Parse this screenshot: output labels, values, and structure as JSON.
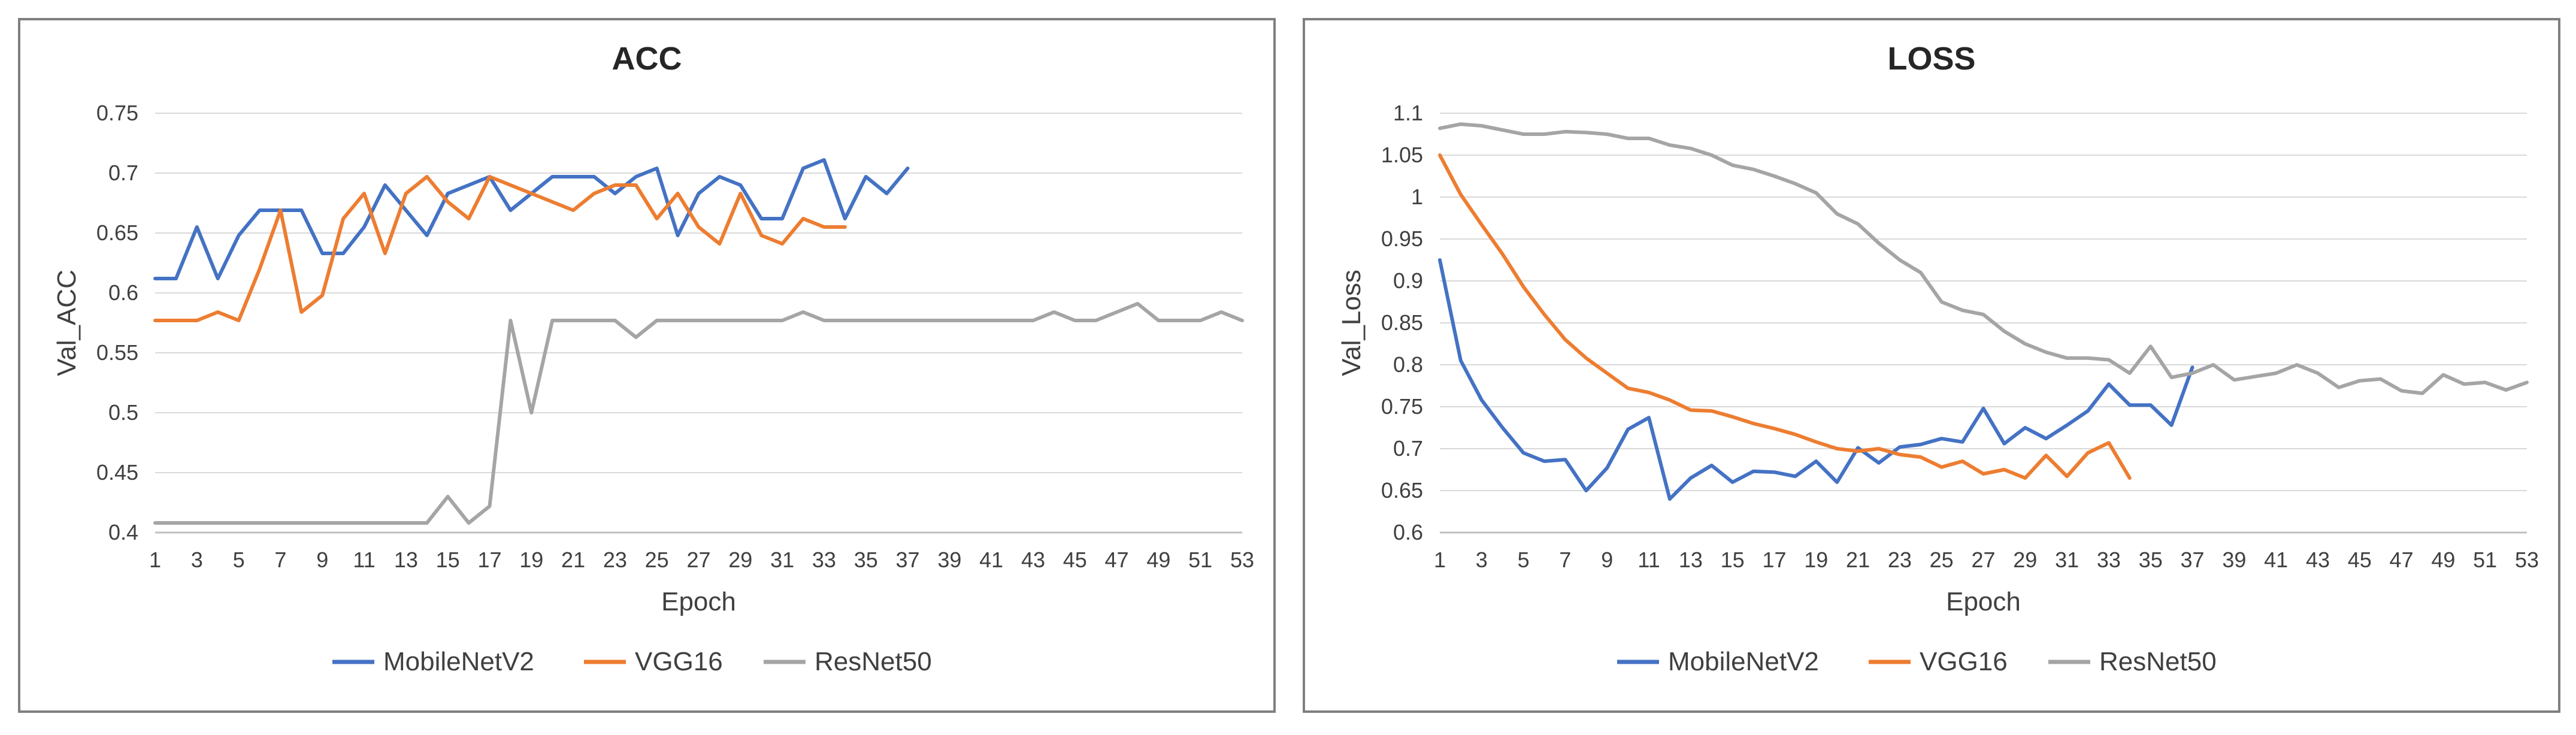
{
  "chart_data": [
    {
      "type": "line",
      "title": "ACC",
      "xlabel": "Epoch",
      "ylabel": "Val_ACC",
      "ylim": [
        0.4,
        0.75
      ],
      "yticks": [
        "0.4",
        "0.45",
        "0.5",
        "0.55",
        "0.6",
        "0.65",
        "0.7",
        "0.75"
      ],
      "xlim": [
        1,
        53
      ],
      "xtick_labels": [
        "1",
        "3",
        "5",
        "7",
        "9",
        "11",
        "13",
        "15",
        "17",
        "19",
        "21",
        "23",
        "25",
        "27",
        "29",
        "31",
        "33",
        "35",
        "37",
        "39",
        "41",
        "43",
        "45",
        "47",
        "49",
        "51",
        "53"
      ],
      "grid": true,
      "legend": "bottom",
      "series": [
        {
          "name": "MobileNetV2",
          "color": "#4472C4",
          "values": [
            0.612,
            0.612,
            0.655,
            0.612,
            0.648,
            0.669,
            0.669,
            0.669,
            0.633,
            0.633,
            0.655,
            0.69,
            0.669,
            0.648,
            0.683,
            0.69,
            0.697,
            0.669,
            0.683,
            0.697,
            0.697,
            0.697,
            0.683,
            0.697,
            0.704,
            0.648,
            0.683,
            0.697,
            0.69,
            0.662,
            0.662,
            0.704,
            0.711,
            0.662,
            0.697,
            0.683,
            0.704
          ]
        },
        {
          "name": "VGG16",
          "color": "#ED7D31",
          "values": [
            0.577,
            0.577,
            0.577,
            0.584,
            0.577,
            0.62,
            0.669,
            0.584,
            0.598,
            0.662,
            0.683,
            0.633,
            0.683,
            0.697,
            0.676,
            0.662,
            0.697,
            0.69,
            0.683,
            0.676,
            0.669,
            0.683,
            0.69,
            0.69,
            0.662,
            0.683,
            0.655,
            0.641,
            0.683,
            0.648,
            0.641,
            0.662,
            0.655,
            0.655
          ]
        },
        {
          "name": "ResNet50",
          "color": "#A5A5A5",
          "values": [
            0.408,
            0.408,
            0.408,
            0.408,
            0.408,
            0.408,
            0.408,
            0.408,
            0.408,
            0.408,
            0.408,
            0.408,
            0.408,
            0.408,
            0.43,
            0.408,
            0.422,
            0.577,
            0.5,
            0.577,
            0.577,
            0.577,
            0.577,
            0.563,
            0.577,
            0.577,
            0.577,
            0.577,
            0.577,
            0.577,
            0.577,
            0.584,
            0.577,
            0.577,
            0.577,
            0.577,
            0.577,
            0.577,
            0.577,
            0.577,
            0.577,
            0.577,
            0.577,
            0.584,
            0.577,
            0.577,
            0.584,
            0.591,
            0.577,
            0.577,
            0.577,
            0.584,
            0.577
          ]
        }
      ]
    },
    {
      "type": "line",
      "title": "LOSS",
      "xlabel": "Epoch",
      "ylabel": "Val_Loss",
      "ylim": [
        0.6,
        1.1
      ],
      "yticks": [
        "0.6",
        "0.65",
        "0.7",
        "0.75",
        "0.8",
        "0.85",
        "0.9",
        "0.95",
        "1",
        "1.05",
        "1.1"
      ],
      "xlim": [
        1,
        53
      ],
      "xtick_labels": [
        "1",
        "3",
        "5",
        "7",
        "9",
        "11",
        "13",
        "15",
        "17",
        "19",
        "21",
        "23",
        "25",
        "27",
        "29",
        "31",
        "33",
        "35",
        "37",
        "39",
        "41",
        "43",
        "45",
        "47",
        "49",
        "51",
        "53"
      ],
      "grid": true,
      "legend": "bottom",
      "series": [
        {
          "name": "MobileNetV2",
          "color": "#4472C4",
          "values": [
            0.925,
            0.805,
            0.758,
            0.725,
            0.695,
            0.685,
            0.687,
            0.65,
            0.677,
            0.723,
            0.737,
            0.64,
            0.665,
            0.68,
            0.66,
            0.673,
            0.672,
            0.667,
            0.685,
            0.66,
            0.701,
            0.683,
            0.702,
            0.705,
            0.712,
            0.708,
            0.748,
            0.706,
            0.725,
            0.712,
            0.728,
            0.745,
            0.777,
            0.752,
            0.752,
            0.728,
            0.797
          ]
        },
        {
          "name": "VGG16",
          "color": "#ED7D31",
          "values": [
            1.05,
            1.003,
            0.967,
            0.932,
            0.893,
            0.86,
            0.83,
            0.808,
            0.79,
            0.772,
            0.767,
            0.758,
            0.746,
            0.745,
            0.738,
            0.73,
            0.724,
            0.717,
            0.708,
            0.7,
            0.697,
            0.7,
            0.693,
            0.69,
            0.678,
            0.685,
            0.67,
            0.675,
            0.665,
            0.692,
            0.667,
            0.695,
            0.707,
            0.665
          ]
        },
        {
          "name": "ResNet50",
          "color": "#A5A5A5",
          "values": [
            1.082,
            1.087,
            1.085,
            1.08,
            1.075,
            1.075,
            1.078,
            1.077,
            1.075,
            1.07,
            1.07,
            1.062,
            1.058,
            1.05,
            1.038,
            1.033,
            1.025,
            1.016,
            1.005,
            0.98,
            0.968,
            0.945,
            0.925,
            0.91,
            0.875,
            0.865,
            0.86,
            0.84,
            0.825,
            0.815,
            0.808,
            0.808,
            0.806,
            0.79,
            0.822,
            0.785,
            0.79,
            0.8,
            0.782,
            0.786,
            0.79,
            0.8,
            0.79,
            0.773,
            0.781,
            0.783,
            0.769,
            0.766,
            0.788,
            0.777,
            0.779,
            0.77,
            0.779
          ]
        }
      ]
    }
  ]
}
